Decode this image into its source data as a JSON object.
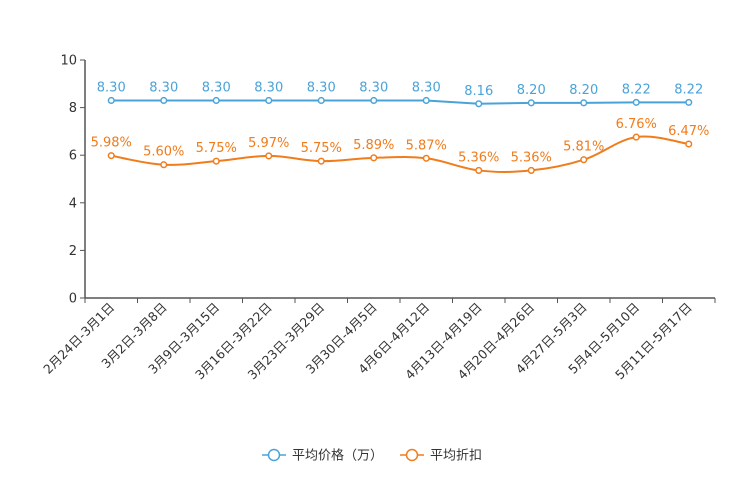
{
  "chart_data": {
    "type": "line",
    "title": "",
    "xlabel": "",
    "ylabel": "",
    "ylim": [
      0,
      10
    ],
    "yticks": [
      "0",
      "2",
      "4",
      "6",
      "8",
      "10"
    ],
    "categories": [
      "2月24日-3月1日",
      "3月2日-3月8日",
      "3月9日-3月15日",
      "3月16日-3月22日",
      "3月23日-3月29日",
      "3月30日-4月5日",
      "4月6日-4月12日",
      "4月13日-4月19日",
      "4月20日-4月26日",
      "4月27日-5月3日",
      "5月4日-5月10日",
      "5月11日-5月17日"
    ],
    "series": [
      {
        "name": "平均价格（万）",
        "color": "#4aa3d8",
        "values": [
          8.3,
          8.3,
          8.3,
          8.3,
          8.3,
          8.3,
          8.3,
          8.16,
          8.2,
          8.2,
          8.22,
          8.22
        ],
        "labels": [
          "8.30",
          "8.30",
          "8.30",
          "8.30",
          "8.30",
          "8.30",
          "8.30",
          "8.16",
          "8.20",
          "8.20",
          "8.22",
          "8.22"
        ]
      },
      {
        "name": "平均折扣",
        "color": "#f07c1c",
        "values": [
          5.98,
          5.6,
          5.75,
          5.97,
          5.75,
          5.89,
          5.87,
          5.36,
          5.36,
          5.81,
          6.76,
          6.47
        ],
        "labels": [
          "5.98%",
          "5.60%",
          "5.75%",
          "5.97%",
          "5.75%",
          "5.89%",
          "5.87%",
          "5.36%",
          "5.36%",
          "5.81%",
          "6.76%",
          "6.47%"
        ]
      }
    ],
    "grid": false,
    "legend_position": "bottom-center"
  }
}
